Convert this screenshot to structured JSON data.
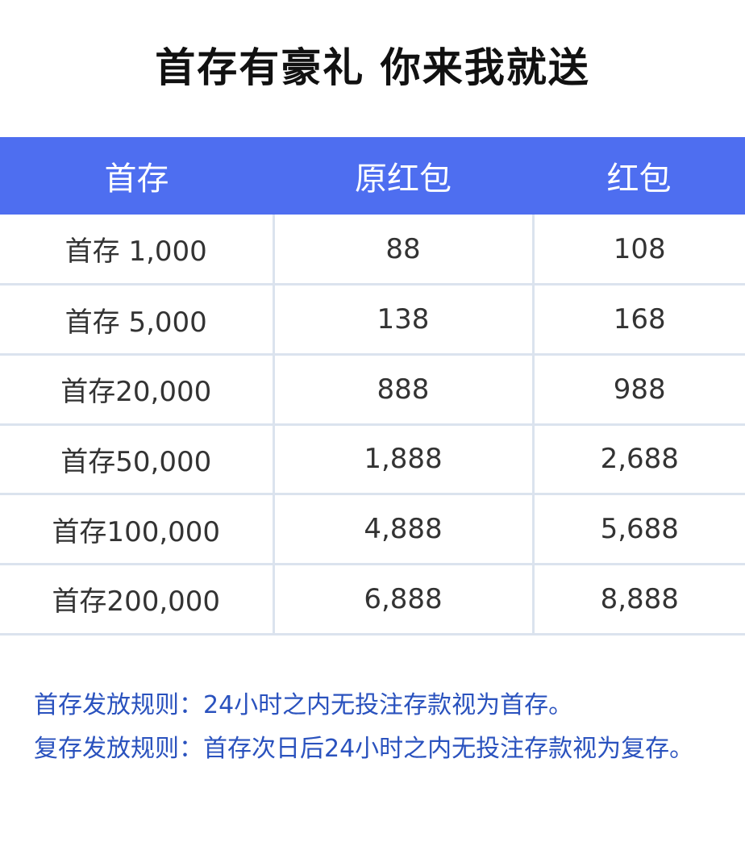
{
  "title": "首存有豪礼 你来我就送",
  "table": {
    "headers": [
      "首存",
      "原红包",
      "红包"
    ],
    "rows": [
      [
        "首存 1,000",
        "88",
        "108"
      ],
      [
        "首存 5,000",
        "138",
        "168"
      ],
      [
        "首存20,000",
        "888",
        "988"
      ],
      [
        "首存50,000",
        "1,888",
        "2,688"
      ],
      [
        "首存100,000",
        "4,888",
        "5,688"
      ],
      [
        "首存200,000",
        "6,888",
        "8,888"
      ]
    ]
  },
  "rules": [
    "首存发放规则：24小时之内无投注存款视为首存。",
    "复存发放规则：首存次日后24小时之内无投注存款视为复存。"
  ],
  "colors": {
    "header_bg": "#4e6ef0",
    "rules_text": "#2a52be"
  }
}
